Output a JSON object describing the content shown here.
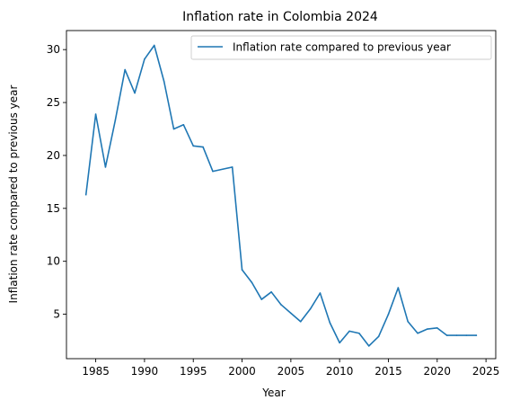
{
  "chart_data": {
    "type": "line",
    "title": "Inflation rate in Colombia 2024",
    "xlabel": "Year",
    "ylabel": "Inflation rate compared to previous year",
    "xlim": [
      1982,
      2026
    ],
    "ylim": [
      0.8,
      31.8
    ],
    "xticks": [
      1985,
      1990,
      1995,
      2000,
      2005,
      2010,
      2015,
      2020,
      2025
    ],
    "yticks": [
      5,
      10,
      15,
      20,
      25,
      30
    ],
    "legend": "top-right",
    "grid": false,
    "series": [
      {
        "name": "Inflation rate compared to previous year",
        "color": "#1f77b4",
        "x": [
          1984,
          1985,
          1986,
          1987,
          1988,
          1989,
          1990,
          1991,
          1992,
          1993,
          1994,
          1995,
          1996,
          1997,
          1998,
          1999,
          2000,
          2001,
          2002,
          2003,
          2004,
          2005,
          2006,
          2007,
          2008,
          2009,
          2010,
          2011,
          2012,
          2013,
          2014,
          2015,
          2016,
          2017,
          2018,
          2019,
          2020,
          2021,
          2022,
          2023,
          2024
        ],
        "values": [
          16.3,
          23.9,
          18.9,
          23.3,
          28.1,
          25.9,
          29.1,
          30.4,
          27.0,
          22.5,
          22.9,
          20.9,
          20.8,
          18.5,
          18.7,
          18.9,
          9.2,
          8.0,
          6.4,
          7.1,
          5.9,
          5.1,
          4.3,
          5.5,
          7.0,
          4.2,
          2.3,
          3.4,
          3.2,
          2.0,
          2.9,
          5.0,
          7.5,
          4.3,
          3.2,
          3.6,
          3.7,
          3.0,
          3.0,
          3.0,
          3.0
        ]
      }
    ]
  }
}
